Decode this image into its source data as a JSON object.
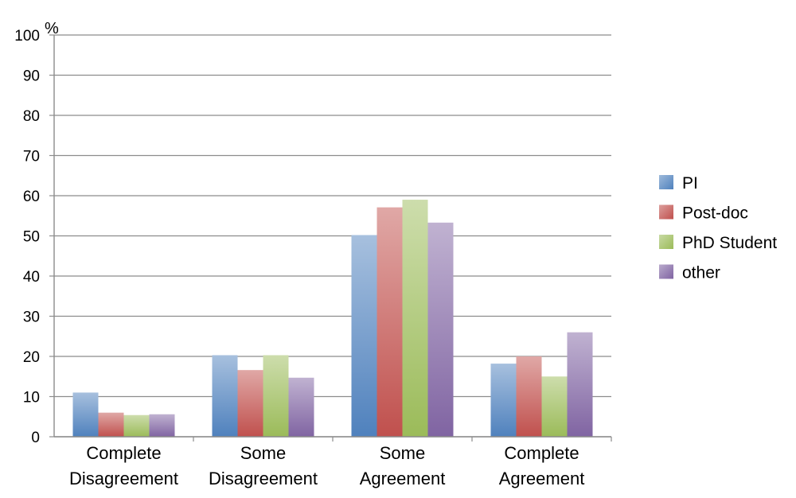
{
  "chart_data": {
    "type": "bar",
    "y_unit": "%",
    "categories": [
      [
        "Complete",
        "Disagreement"
      ],
      [
        "Some",
        "Disagreement"
      ],
      [
        "Some",
        "Agreement"
      ],
      [
        "Complete",
        "Agreement"
      ]
    ],
    "series": [
      {
        "name": "PI",
        "color": "#4f81bd",
        "values": [
          11,
          20.3,
          50.2,
          18.2
        ]
      },
      {
        "name": "Post-doc",
        "color": "#c0504d",
        "values": [
          6,
          16.6,
          57.1,
          20
        ]
      },
      {
        "name": "PhD Student",
        "color": "#9bbb59",
        "values": [
          5.4,
          20.3,
          59,
          15
        ]
      },
      {
        "name": "other",
        "color": "#8064a2",
        "values": [
          5.6,
          14.7,
          53.3,
          26
        ]
      }
    ],
    "ylim": [
      0,
      100
    ],
    "yticks": [
      0,
      10,
      20,
      30,
      40,
      50,
      60,
      70,
      80,
      90,
      100
    ],
    "grid": true,
    "legend_position": "right"
  }
}
